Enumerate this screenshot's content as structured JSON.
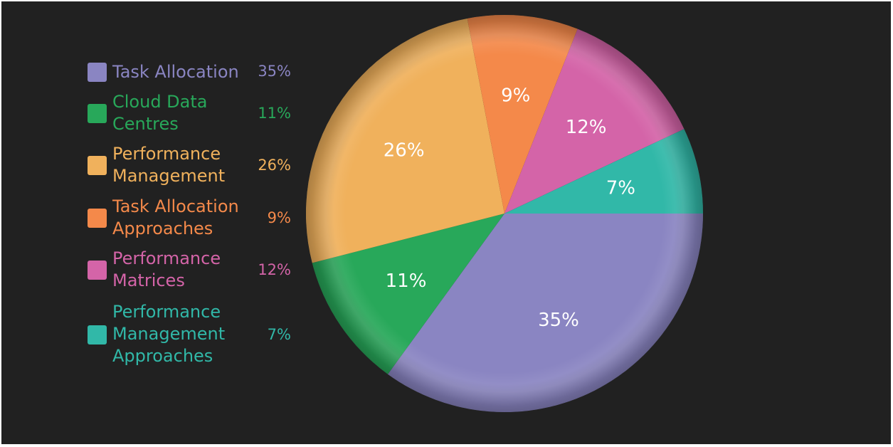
{
  "chart_data": {
    "type": "pie",
    "slices": [
      {
        "name": "Task Allocation",
        "value": 35,
        "label": "35%",
        "color": "#8a85c2"
      },
      {
        "name": "Cloud Data\nCentres",
        "value": 11,
        "label": "11%",
        "color": "#28a85a"
      },
      {
        "name": "Performance\nManagement",
        "value": 26,
        "label": "26%",
        "color": "#f0b15c"
      },
      {
        "name": "Task Allocation\nApproaches",
        "value": 9,
        "label": "9%",
        "color": "#f4894a"
      },
      {
        "name": "Performance\nMatrices",
        "value": 12,
        "label": "12%",
        "color": "#d464a8"
      },
      {
        "name": "Performance\nManagement\nApproaches",
        "value": 7,
        "label": "7%",
        "color": "#31b8a8"
      }
    ],
    "legend_position": "left",
    "background": "#212121"
  }
}
